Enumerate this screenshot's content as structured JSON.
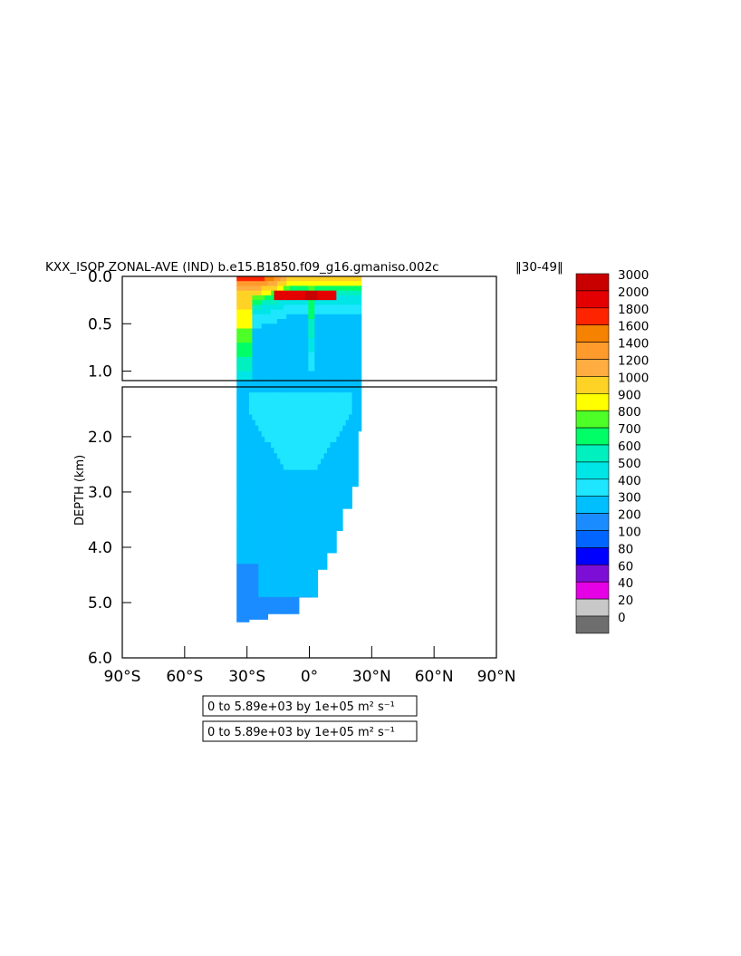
{
  "chart_data": {
    "type": "heatmap",
    "title": "KXX_ISOP ZONAL-AVE (IND) b.e15.B1850.f09_g16.gmaniso.002c",
    "title_years": "30-49",
    "ylabel": "DEPTH (km)",
    "x_ticks": [
      "90°S",
      "60°S",
      "30°S",
      "0°",
      "30°N",
      "60°N",
      "90°N"
    ],
    "x_range": [
      -90,
      90
    ],
    "y_ticks_upper": [
      "0.0",
      "0.5",
      "1.0"
    ],
    "y_ticks_lower": [
      "2.0",
      "3.0",
      "4.0",
      "5.0",
      "6.0"
    ],
    "y_range_upper_km": [
      0,
      1.1
    ],
    "y_range_lower_km": [
      1.1,
      6.0
    ],
    "colorbar_levels": [
      "3000",
      "2000",
      "1800",
      "1600",
      "1400",
      "1200",
      "1000",
      "900",
      "800",
      "700",
      "600",
      "500",
      "400",
      "300",
      "200",
      "100",
      "80",
      "60",
      "40",
      "20",
      "0"
    ],
    "colorbar_colors": [
      "#c80000",
      "#e40000",
      "#ff2400",
      "#f58200",
      "#ff9a2d",
      "#ffac40",
      "#ffd226",
      "#ffff00",
      "#4dff26",
      "#00ff66",
      "#00f0c0",
      "#00e6e6",
      "#1ee6ff",
      "#00bfff",
      "#1a8cff",
      "#0066ff",
      "#0000ff",
      "#7d0ed5",
      "#e600e6",
      "#c8c8c8",
      "#6e6e6e"
    ],
    "range_label_1": "0 to 5.89e+03 by 1e+05 m² s⁻¹",
    "range_label_2": "0 to 5.89e+03 by 1e+05 m² s⁻¹",
    "data_extent_lat": [
      -35,
      25
    ],
    "max_depth_km": 5.35
  }
}
